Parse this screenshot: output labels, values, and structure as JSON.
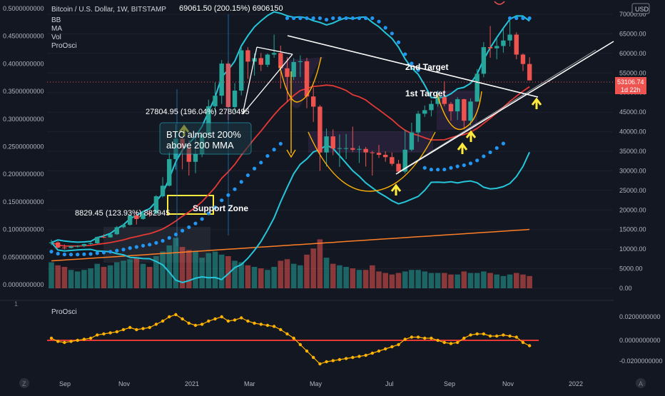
{
  "header": {
    "title": "Bitcoin / U.S. Dollar, 1W, BITSTAMP",
    "indicators": [
      "BB",
      "MA",
      "Vol",
      "ProOsci"
    ],
    "currency": "USD",
    "top_annotation": "69061.50 (200.15%) 6906150"
  },
  "price_label": {
    "value": "53106.74",
    "timer": "1d 22h"
  },
  "annotations": {
    "a1": "8829.45 (123.93%) 882945",
    "a2": "27804.95 (196.04%) 2780495",
    "box_line1": "BTC almost 200%",
    "box_line2": "above 200 MMA",
    "support": "Support Zone",
    "target1": "1st Target",
    "target2": "2nd Target"
  },
  "oscillator": {
    "name": "ProOsci"
  },
  "colors": {
    "bg": "#131722",
    "up": "#26a69a",
    "down": "#ef5350",
    "bb": "#26c6da",
    "sar": "#2196f3",
    "ma_short": "#e53935",
    "ma_long": "#ff7f27",
    "osc": "#ffb300",
    "yellow": "#ffeb3b",
    "white": "#ffffff"
  },
  "chart_data": {
    "type": "candlestick",
    "symbol": "BTCUSD",
    "interval": "1W",
    "y_axis_right": [
      "70000.00",
      "65000.00",
      "60000.00",
      "55000.00",
      "50000.00",
      "45000.00",
      "40000.00",
      "35000.00",
      "30000.00",
      "25000.00",
      "20000.00",
      "15000.00",
      "10000.00",
      "5000.00",
      "0.00"
    ],
    "y_axis_left": [
      "0.5000000000",
      "0.4500000000",
      "0.4000000000",
      "0.3500000000",
      "0.3000000000",
      "0.2500000000",
      "0.2000000000",
      "0.1500000000",
      "0.1000000000",
      "0.0500000000",
      "0.0000000000"
    ],
    "osc_axis": [
      "0.0200000000",
      "0.0000000000",
      "-0.0200000000"
    ],
    "x_labels": [
      "Sep",
      "Nov",
      "2021",
      "Mar",
      "May",
      "Jul",
      "Sep",
      "Nov",
      "2022"
    ],
    "ylim": [
      0,
      70000
    ],
    "candles": [
      {
        "o": 11500,
        "h": 12400,
        "l": 11000,
        "c": 11700
      },
      {
        "o": 11700,
        "h": 12000,
        "l": 10200,
        "c": 10400
      },
      {
        "o": 10400,
        "h": 11200,
        "l": 9900,
        "c": 10300
      },
      {
        "o": 10300,
        "h": 10900,
        "l": 10200,
        "c": 10700
      },
      {
        "o": 10700,
        "h": 11000,
        "l": 10400,
        "c": 10800
      },
      {
        "o": 10800,
        "h": 11400,
        "l": 10500,
        "c": 11300
      },
      {
        "o": 11300,
        "h": 11800,
        "l": 11100,
        "c": 11500
      },
      {
        "o": 11500,
        "h": 13200,
        "l": 11300,
        "c": 13100
      },
      {
        "o": 13100,
        "h": 13800,
        "l": 12800,
        "c": 13000
      },
      {
        "o": 13000,
        "h": 14000,
        "l": 12900,
        "c": 13800
      },
      {
        "o": 13800,
        "h": 15900,
        "l": 13600,
        "c": 15600
      },
      {
        "o": 15600,
        "h": 16500,
        "l": 15300,
        "c": 16200
      },
      {
        "o": 16200,
        "h": 18800,
        "l": 16000,
        "c": 18600
      },
      {
        "o": 18600,
        "h": 19500,
        "l": 16300,
        "c": 17700
      },
      {
        "o": 17700,
        "h": 19800,
        "l": 17500,
        "c": 19200
      },
      {
        "o": 19200,
        "h": 19600,
        "l": 18200,
        "c": 19100
      },
      {
        "o": 19100,
        "h": 23800,
        "l": 18900,
        "c": 23500
      },
      {
        "o": 23500,
        "h": 28400,
        "l": 23200,
        "c": 26200
      },
      {
        "o": 26200,
        "h": 34800,
        "l": 26000,
        "c": 33000
      },
      {
        "o": 33000,
        "h": 41900,
        "l": 30300,
        "c": 38200
      },
      {
        "o": 38200,
        "h": 38700,
        "l": 30400,
        "c": 35800
      },
      {
        "o": 35800,
        "h": 37800,
        "l": 28800,
        "c": 32300
      },
      {
        "o": 32300,
        "h": 38500,
        "l": 29400,
        "c": 34300
      },
      {
        "o": 34300,
        "h": 40100,
        "l": 33500,
        "c": 39200
      },
      {
        "o": 39200,
        "h": 48200,
        "l": 38000,
        "c": 46500
      },
      {
        "o": 46500,
        "h": 52600,
        "l": 45000,
        "c": 49200
      },
      {
        "o": 49200,
        "h": 58300,
        "l": 47100,
        "c": 57400
      },
      {
        "o": 57400,
        "h": 58000,
        "l": 43000,
        "c": 46300
      },
      {
        "o": 46300,
        "h": 52400,
        "l": 45000,
        "c": 50500
      },
      {
        "o": 50500,
        "h": 61800,
        "l": 49300,
        "c": 60800
      },
      {
        "o": 60800,
        "h": 61600,
        "l": 53500,
        "c": 57900
      },
      {
        "o": 57900,
        "h": 60000,
        "l": 54300,
        "c": 58800
      },
      {
        "o": 58800,
        "h": 60100,
        "l": 55500,
        "c": 57100
      },
      {
        "o": 57100,
        "h": 60000,
        "l": 56500,
        "c": 59700
      },
      {
        "o": 59700,
        "h": 64800,
        "l": 58900,
        "c": 60100
      },
      {
        "o": 60100,
        "h": 62000,
        "l": 51000,
        "c": 56200
      },
      {
        "o": 56200,
        "h": 59000,
        "l": 47500,
        "c": 54000
      },
      {
        "o": 54000,
        "h": 58800,
        "l": 53200,
        "c": 57800
      },
      {
        "o": 57800,
        "h": 59500,
        "l": 54000,
        "c": 58000
      },
      {
        "o": 58000,
        "h": 58900,
        "l": 46000,
        "c": 49000
      },
      {
        "o": 49000,
        "h": 51300,
        "l": 42500,
        "c": 46400
      },
      {
        "o": 46400,
        "h": 46800,
        "l": 30000,
        "c": 34700
      },
      {
        "o": 34700,
        "h": 40800,
        "l": 31100,
        "c": 38800
      },
      {
        "o": 38800,
        "h": 40600,
        "l": 34000,
        "c": 35700
      },
      {
        "o": 35700,
        "h": 39300,
        "l": 31000,
        "c": 35800
      },
      {
        "o": 35800,
        "h": 39400,
        "l": 33000,
        "c": 35800
      },
      {
        "o": 35800,
        "h": 41300,
        "l": 34800,
        "c": 35400
      },
      {
        "o": 35400,
        "h": 36400,
        "l": 32000,
        "c": 35600
      },
      {
        "o": 35600,
        "h": 36100,
        "l": 31100,
        "c": 34700
      },
      {
        "o": 34700,
        "h": 35100,
        "l": 28800,
        "c": 34600
      },
      {
        "o": 34600,
        "h": 36600,
        "l": 33300,
        "c": 34100
      },
      {
        "o": 34100,
        "h": 35000,
        "l": 32300,
        "c": 33500
      },
      {
        "o": 33500,
        "h": 34700,
        "l": 31300,
        "c": 31800
      },
      {
        "o": 31800,
        "h": 32800,
        "l": 29300,
        "c": 29800
      },
      {
        "o": 29800,
        "h": 40500,
        "l": 29300,
        "c": 35400
      },
      {
        "o": 35400,
        "h": 42300,
        "l": 35000,
        "c": 39800
      },
      {
        "o": 39800,
        "h": 45300,
        "l": 37400,
        "c": 44600
      },
      {
        "o": 44600,
        "h": 46700,
        "l": 43800,
        "c": 45500
      },
      {
        "o": 45500,
        "h": 48000,
        "l": 43900,
        "c": 47100
      },
      {
        "o": 47100,
        "h": 50500,
        "l": 46400,
        "c": 48800
      },
      {
        "o": 48800,
        "h": 52900,
        "l": 46500,
        "c": 47100
      },
      {
        "o": 47100,
        "h": 47600,
        "l": 42800,
        "c": 45200
      },
      {
        "o": 45200,
        "h": 48800,
        "l": 43000,
        "c": 48300
      },
      {
        "o": 48300,
        "h": 48400,
        "l": 40600,
        "c": 42800
      },
      {
        "o": 42800,
        "h": 48500,
        "l": 41600,
        "c": 47700
      },
      {
        "o": 47700,
        "h": 56000,
        "l": 47600,
        "c": 54800
      },
      {
        "o": 54800,
        "h": 62900,
        "l": 53900,
        "c": 61600
      },
      {
        "o": 61600,
        "h": 67000,
        "l": 58900,
        "c": 61300
      },
      {
        "o": 61300,
        "h": 63900,
        "l": 58500,
        "c": 61900
      },
      {
        "o": 61900,
        "h": 66400,
        "l": 60200,
        "c": 63300
      },
      {
        "o": 63300,
        "h": 69000,
        "l": 61800,
        "c": 64800
      },
      {
        "o": 64800,
        "h": 65400,
        "l": 58500,
        "c": 59700
      },
      {
        "o": 59700,
        "h": 60000,
        "l": 55500,
        "c": 57300
      },
      {
        "o": 57300,
        "h": 59000,
        "l": 53100,
        "c": 53106
      }
    ],
    "volume": [
      17000,
      15000,
      14000,
      12000,
      11000,
      12000,
      13000,
      16000,
      14000,
      15000,
      17000,
      18000,
      19000,
      20000,
      16000,
      14000,
      21000,
      24000,
      28000,
      33000,
      27000,
      25000,
      24000,
      20000,
      23000,
      24000,
      22000,
      21000,
      18000,
      17000,
      15000,
      14000,
      13000,
      12000,
      14000,
      18000,
      19000,
      16000,
      15000,
      22000,
      26000,
      32000,
      20000,
      16000,
      15000,
      14000,
      13000,
      12000,
      12000,
      15000,
      11000,
      10000,
      9000,
      10000,
      11000,
      12000,
      12000,
      11000,
      10000,
      10000,
      10000,
      9000,
      9000,
      11000,
      10000,
      10000,
      11000,
      10000,
      9000,
      8000,
      9000,
      10000,
      9000,
      8000
    ],
    "oscillator_values": [
      0.002,
      -0.001,
      -0.002,
      -0.001,
      0.0,
      0.001,
      0.002,
      0.005,
      0.006,
      0.007,
      0.008,
      0.01,
      0.012,
      0.01,
      0.011,
      0.012,
      0.015,
      0.018,
      0.022,
      0.024,
      0.02,
      0.016,
      0.014,
      0.015,
      0.018,
      0.02,
      0.022,
      0.018,
      0.019,
      0.021,
      0.018,
      0.016,
      0.015,
      0.014,
      0.013,
      0.01,
      0.006,
      0.002,
      -0.004,
      -0.01,
      -0.016,
      -0.022,
      -0.02,
      -0.019,
      -0.018,
      -0.017,
      -0.016,
      -0.015,
      -0.014,
      -0.012,
      -0.01,
      -0.008,
      -0.006,
      -0.004,
      0.001,
      0.003,
      0.003,
      0.002,
      0.002,
      0.0,
      -0.002,
      -0.003,
      -0.002,
      0.002,
      0.005,
      0.006,
      0.006,
      0.004,
      0.004,
      0.005,
      0.004,
      0.003,
      -0.002,
      -0.005
    ]
  }
}
